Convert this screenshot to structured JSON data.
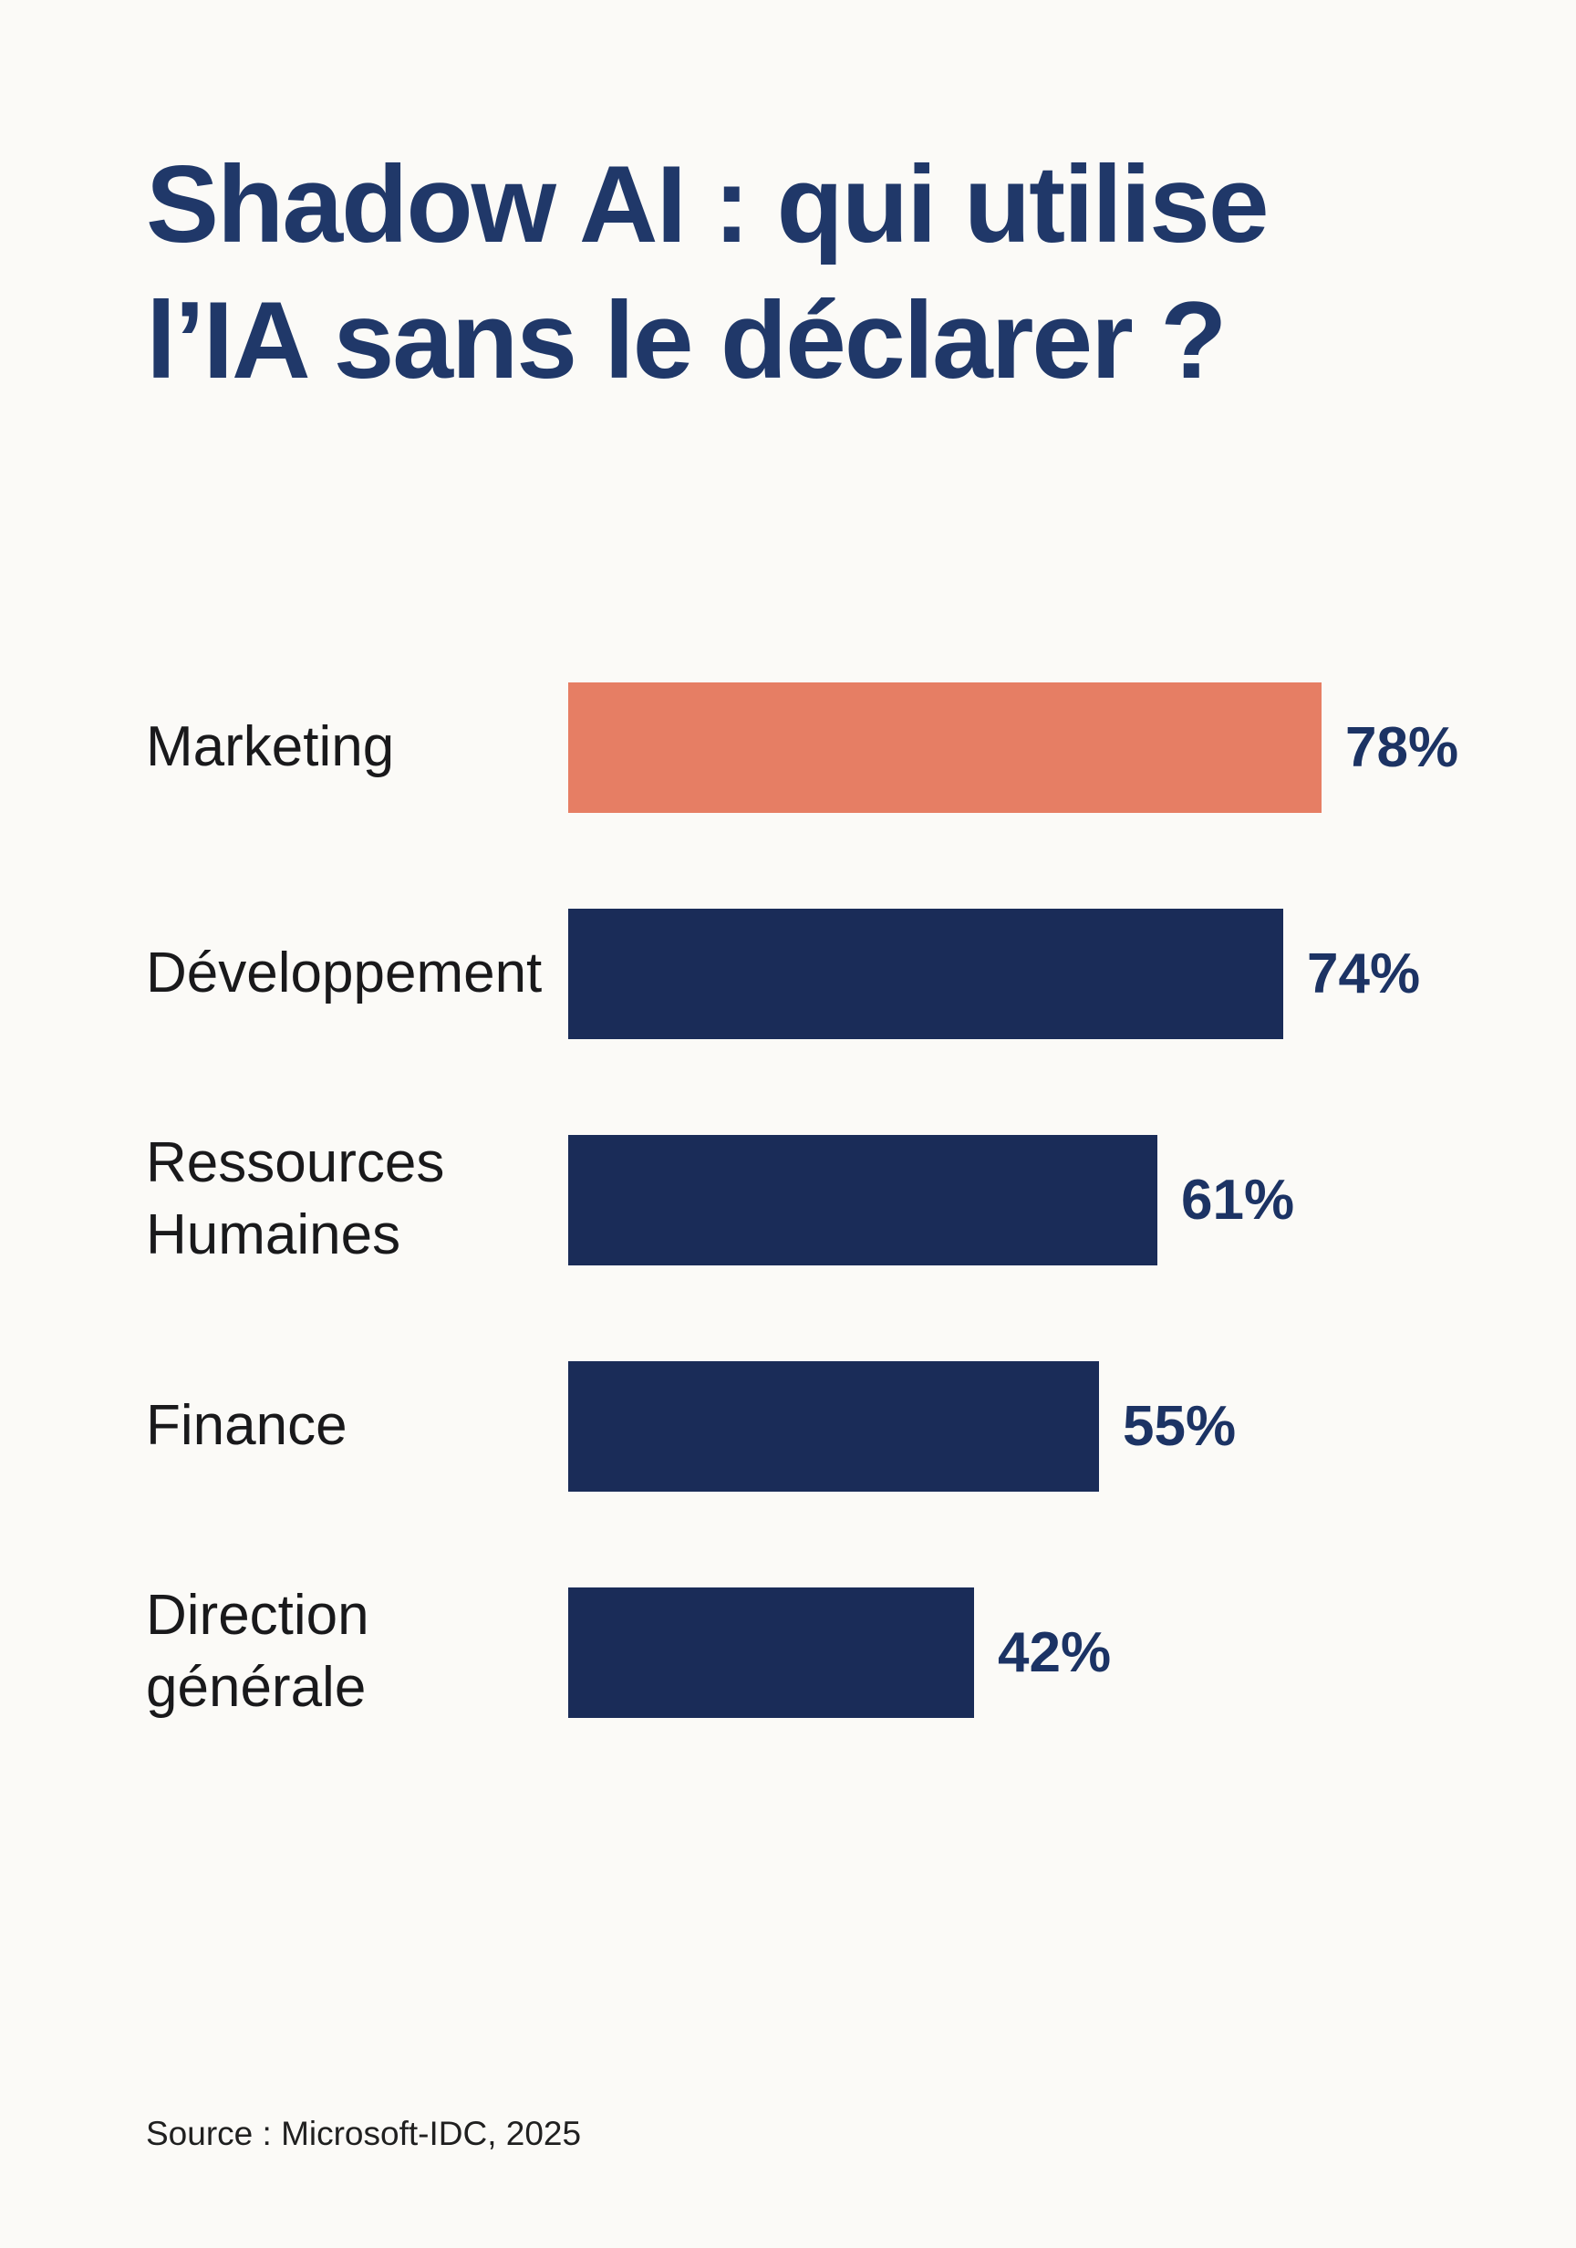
{
  "page": {
    "background_color": "#FBFAF7"
  },
  "title": {
    "full_text": "Shadow AI : qui utilise l’IA sans le déclarer ?",
    "lines": [
      "Shadow AI : qui utilise",
      "l’IA sans le déclarer ?"
    ],
    "color": "#203869"
  },
  "chart_data": {
    "type": "bar",
    "orientation": "horizontal",
    "title": "Shadow AI : qui utilise l’IA sans le déclarer ?",
    "categories": [
      "Marketing",
      "Développement",
      "Ressources Humaines",
      "Finance",
      "Direction générale"
    ],
    "values": [
      78,
      74,
      61,
      55,
      42
    ],
    "value_labels": [
      "78%",
      "74%",
      "61%",
      "55%",
      "42%"
    ],
    "unit": "%",
    "xlim": [
      0,
      100
    ],
    "bar_colors": [
      "#E67E64",
      "#1A2C58",
      "#1A2C58",
      "#1A2C58",
      "#1A2C58"
    ],
    "default_bar_color": "#1A2C58",
    "highlight_category": "Marketing",
    "highlight_color": "#E67E64",
    "category_label_color": "#19191B",
    "value_label_color": "#1C3364",
    "grid": false,
    "legend": false,
    "source": "Source : Microsoft-IDC, 2025"
  },
  "source": {
    "text": "Source : Microsoft-IDC, 2025"
  }
}
